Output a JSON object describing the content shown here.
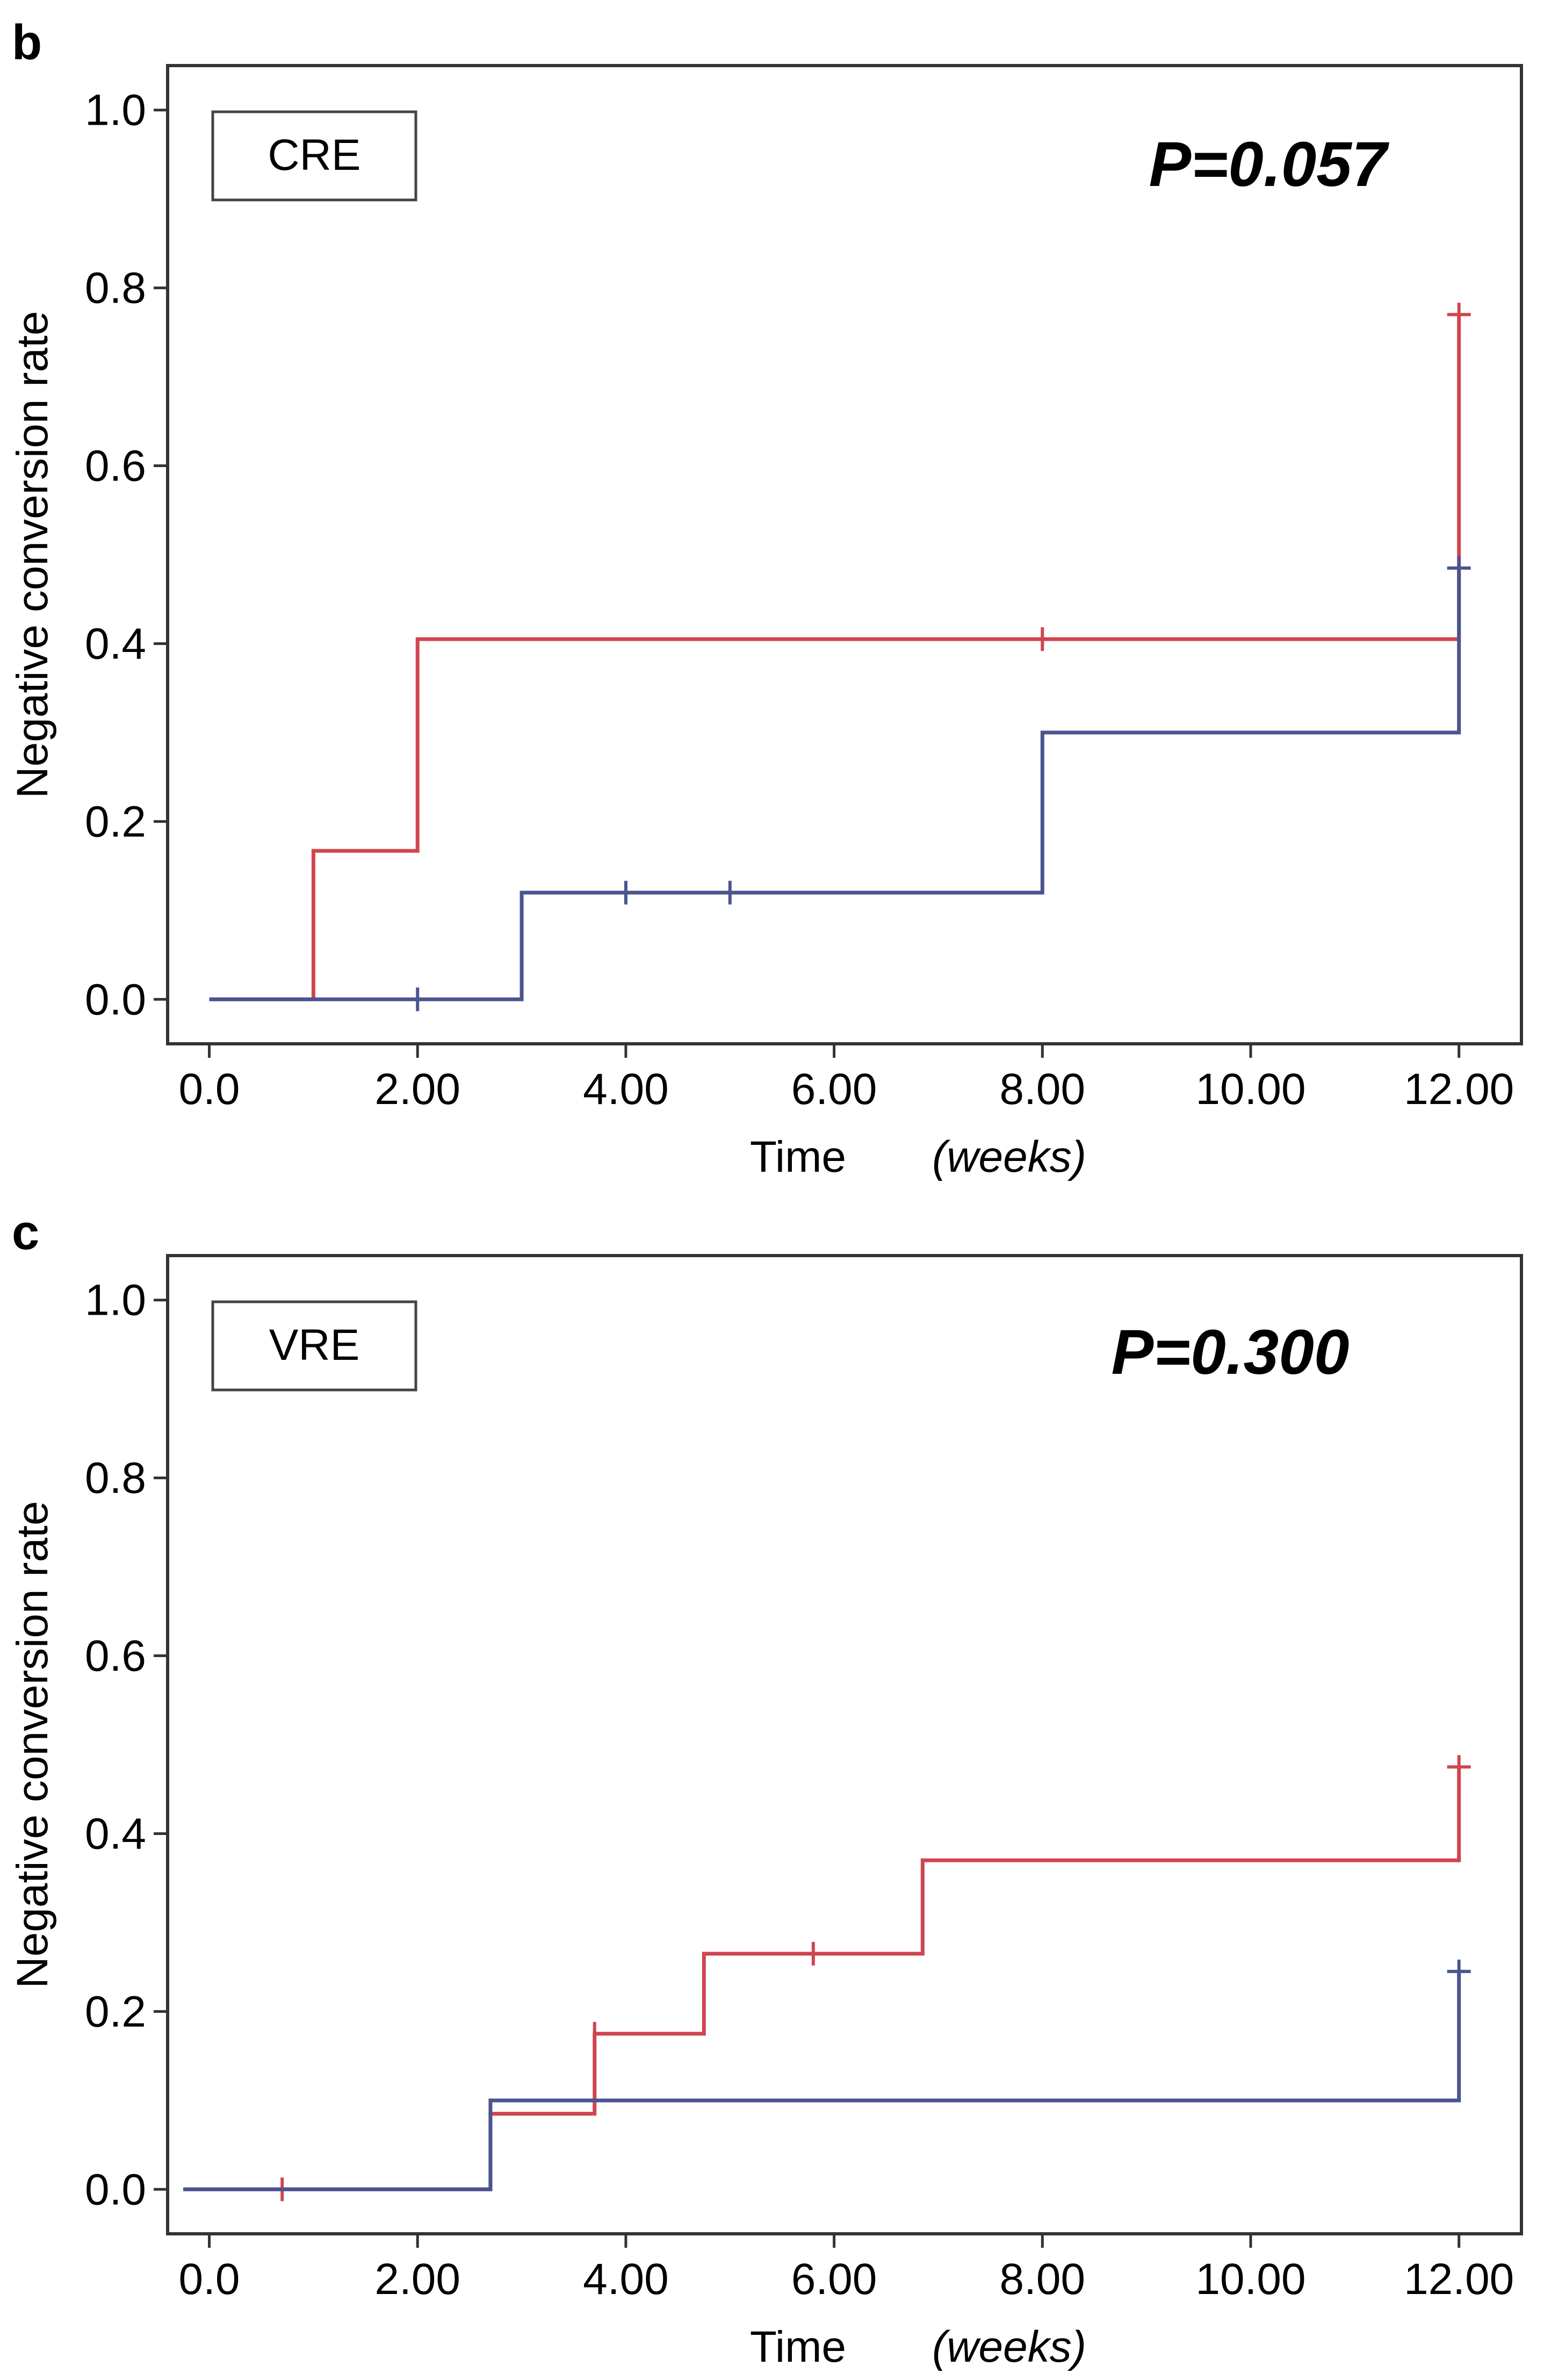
{
  "colors": {
    "series_red": "#d0454f",
    "series_blue": "#4a5590",
    "frame": "#333333"
  },
  "panels": [
    {
      "letter": "b",
      "legend_label": "CRE",
      "p_value": "P=0.057"
    },
    {
      "letter": "c",
      "legend_label": "VRE",
      "p_value": "P=0.300"
    }
  ],
  "chart_data": [
    {
      "type": "line",
      "step": "post",
      "xlabel": "Time",
      "xlabel_unit": "(weeks)",
      "ylabel": "Negative conversion rate",
      "xlim": [
        -0.4,
        12.6
      ],
      "ylim": [
        -0.05,
        1.05
      ],
      "x_tick_labels": [
        "0.0",
        "2.00",
        "4.00",
        "6.00",
        "8.00",
        "10.00",
        "12.00"
      ],
      "y_tick_labels": [
        "0.0",
        "0.2",
        "0.4",
        "0.6",
        "0.8",
        "1.0"
      ],
      "grid": false,
      "series": [
        {
          "color": "#d0454f",
          "x": [
            0,
            1,
            2,
            12,
            12
          ],
          "y": [
            0.0,
            0.167,
            0.405,
            0.405,
            0.77
          ],
          "censored": [
            [
              8,
              0.405
            ],
            [
              12,
              0.77
            ]
          ]
        },
        {
          "color": "#4a5590",
          "x": [
            0,
            3,
            8,
            12,
            12
          ],
          "y": [
            0.0,
            0.12,
            0.3,
            0.3,
            0.485
          ],
          "censored": [
            [
              2,
              0.0
            ],
            [
              4,
              0.12
            ],
            [
              5,
              0.12
            ],
            [
              12,
              0.485
            ]
          ]
        }
      ]
    },
    {
      "type": "line",
      "step": "post",
      "xlabel": "Time",
      "xlabel_unit": "(weeks)",
      "ylabel": "Negative conversion rate",
      "xlim": [
        -0.4,
        12.6
      ],
      "ylim": [
        -0.05,
        1.05
      ],
      "x_tick_labels": [
        "0.0",
        "2.00",
        "4.00",
        "6.00",
        "8.00",
        "10.00",
        "12.00"
      ],
      "y_tick_labels": [
        "0.0",
        "0.2",
        "0.4",
        "0.6",
        "0.8",
        "1.0"
      ],
      "grid": false,
      "series": [
        {
          "color": "#d0454f",
          "x": [
            -0.25,
            2.7,
            3.7,
            4.75,
            6.85,
            12,
            12
          ],
          "y": [
            0.0,
            0.085,
            0.175,
            0.265,
            0.37,
            0.37,
            0.475
          ],
          "censored": [
            [
              0.7,
              0.0
            ],
            [
              3.7,
              0.175
            ],
            [
              5.8,
              0.265
            ],
            [
              12,
              0.475
            ]
          ]
        },
        {
          "color": "#4a5590",
          "x": [
            -0.25,
            2.7,
            12,
            12
          ],
          "y": [
            0.0,
            0.1,
            0.1,
            0.245
          ],
          "censored": [
            [
              12,
              0.245
            ]
          ]
        }
      ]
    }
  ]
}
